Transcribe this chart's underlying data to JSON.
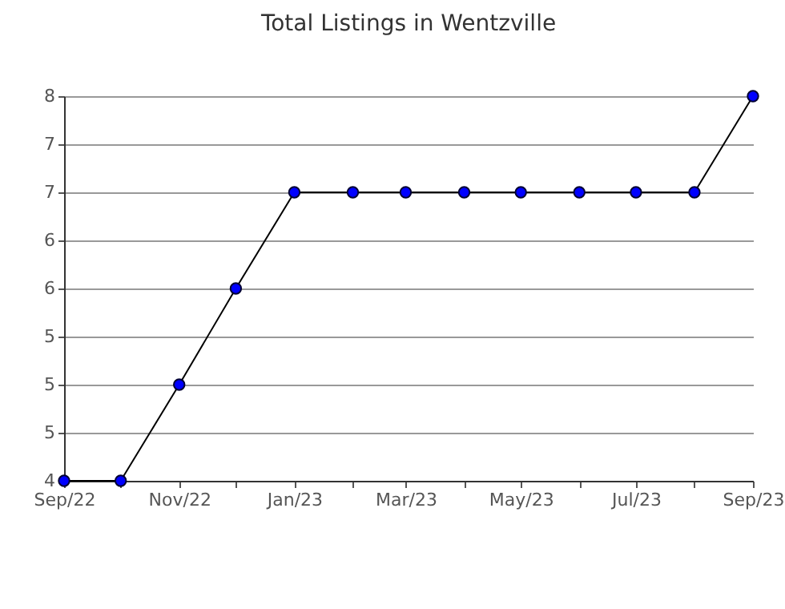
{
  "chart_data": {
    "type": "line",
    "title": "Total Listings in Wentzville",
    "x": [
      "2022-09",
      "2022-10",
      "2022-11",
      "2022-12",
      "2023-01",
      "2023-02",
      "2023-03",
      "2023-04",
      "2023-05",
      "2023-06",
      "2023-07",
      "2023-08",
      "2023-09"
    ],
    "series": [
      {
        "color": "#000000",
        "values": [
          4,
          4,
          5,
          6,
          7,
          7,
          7,
          7,
          7,
          7,
          7,
          7,
          8
        ]
      }
    ],
    "marker": "circle",
    "line_style": "solid",
    "grid": "y",
    "xlim": [
      "2022-09",
      "2023-09"
    ],
    "xticks": [
      {
        "value": "2022-09",
        "label": "Sep/22"
      },
      {
        "value": "2022-10",
        "label": null
      },
      {
        "value": "2022-11",
        "label": "Nov/22"
      },
      {
        "value": "2022-12",
        "label": null
      },
      {
        "value": "2023-01",
        "label": "Jan/23"
      },
      {
        "value": "2023-02",
        "label": null
      },
      {
        "value": "2023-03",
        "label": "Mar/23"
      },
      {
        "value": "2023-04",
        "label": null
      },
      {
        "value": "2023-05",
        "label": "May/23"
      },
      {
        "value": "2023-06",
        "label": null
      },
      {
        "value": "2023-07",
        "label": "Jul/23"
      },
      {
        "value": "2023-08",
        "label": null
      },
      {
        "value": "2023-09",
        "label": "Sep/23"
      }
    ],
    "ylim": [
      4,
      8
    ],
    "yticks": [
      4,
      {
        "value": 4.5,
        "label": "5"
      },
      5,
      {
        "value": 5.5,
        "label": "5"
      },
      6,
      {
        "value": 6.5,
        "label": "6"
      },
      7,
      {
        "value": 7.5,
        "label": "7"
      },
      8
    ]
  }
}
